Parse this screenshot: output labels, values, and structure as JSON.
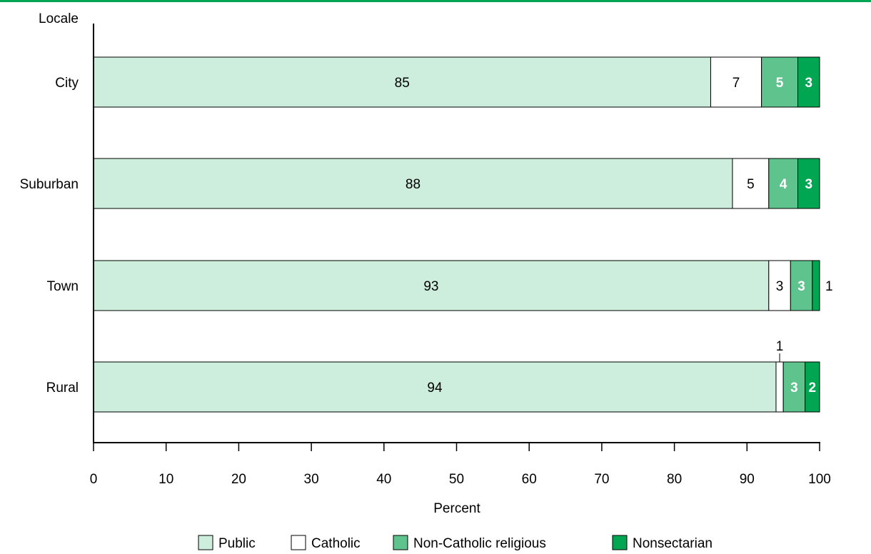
{
  "colors": {
    "top_rule": "#00a651",
    "public": "#cdeedd",
    "catholic": "#ffffff",
    "non_catholic_religious": "#5ec38d",
    "nonsectarian": "#00a651"
  },
  "chart_data": {
    "type": "bar",
    "orientation": "horizontal",
    "stacked": true,
    "title": "",
    "ylabel": "Locale",
    "xlabel": "Percent",
    "xlim": [
      0,
      100
    ],
    "x_ticks": [
      "0",
      "10",
      "20",
      "30",
      "40",
      "50",
      "60",
      "70",
      "80",
      "90",
      "100"
    ],
    "grid": false,
    "legend_position": "bottom",
    "categories": [
      "City",
      "Suburban",
      "Town",
      "Rural"
    ],
    "series": [
      {
        "name": "Public",
        "color": "#cdeedd",
        "label_color": "#000000",
        "values": [
          85,
          88,
          93,
          94
        ],
        "labels": [
          "85",
          "88",
          "93",
          "94"
        ]
      },
      {
        "name": "Catholic",
        "color": "#ffffff",
        "label_color": "#000000",
        "values": [
          7,
          5,
          3,
          1
        ],
        "labels": [
          "7",
          "5",
          "3",
          "1"
        ]
      },
      {
        "name": "Non-Catholic religious",
        "color": "#5ec38d",
        "label_color": "#ffffff",
        "values": [
          5,
          4,
          3,
          3
        ],
        "labels": [
          "5",
          "4",
          "3",
          "3"
        ]
      },
      {
        "name": "Nonsectarian",
        "color": "#00a651",
        "label_color": "#ffffff",
        "values": [
          3,
          3,
          1,
          2
        ],
        "labels": [
          "3",
          "3",
          "1",
          "2"
        ]
      }
    ]
  }
}
